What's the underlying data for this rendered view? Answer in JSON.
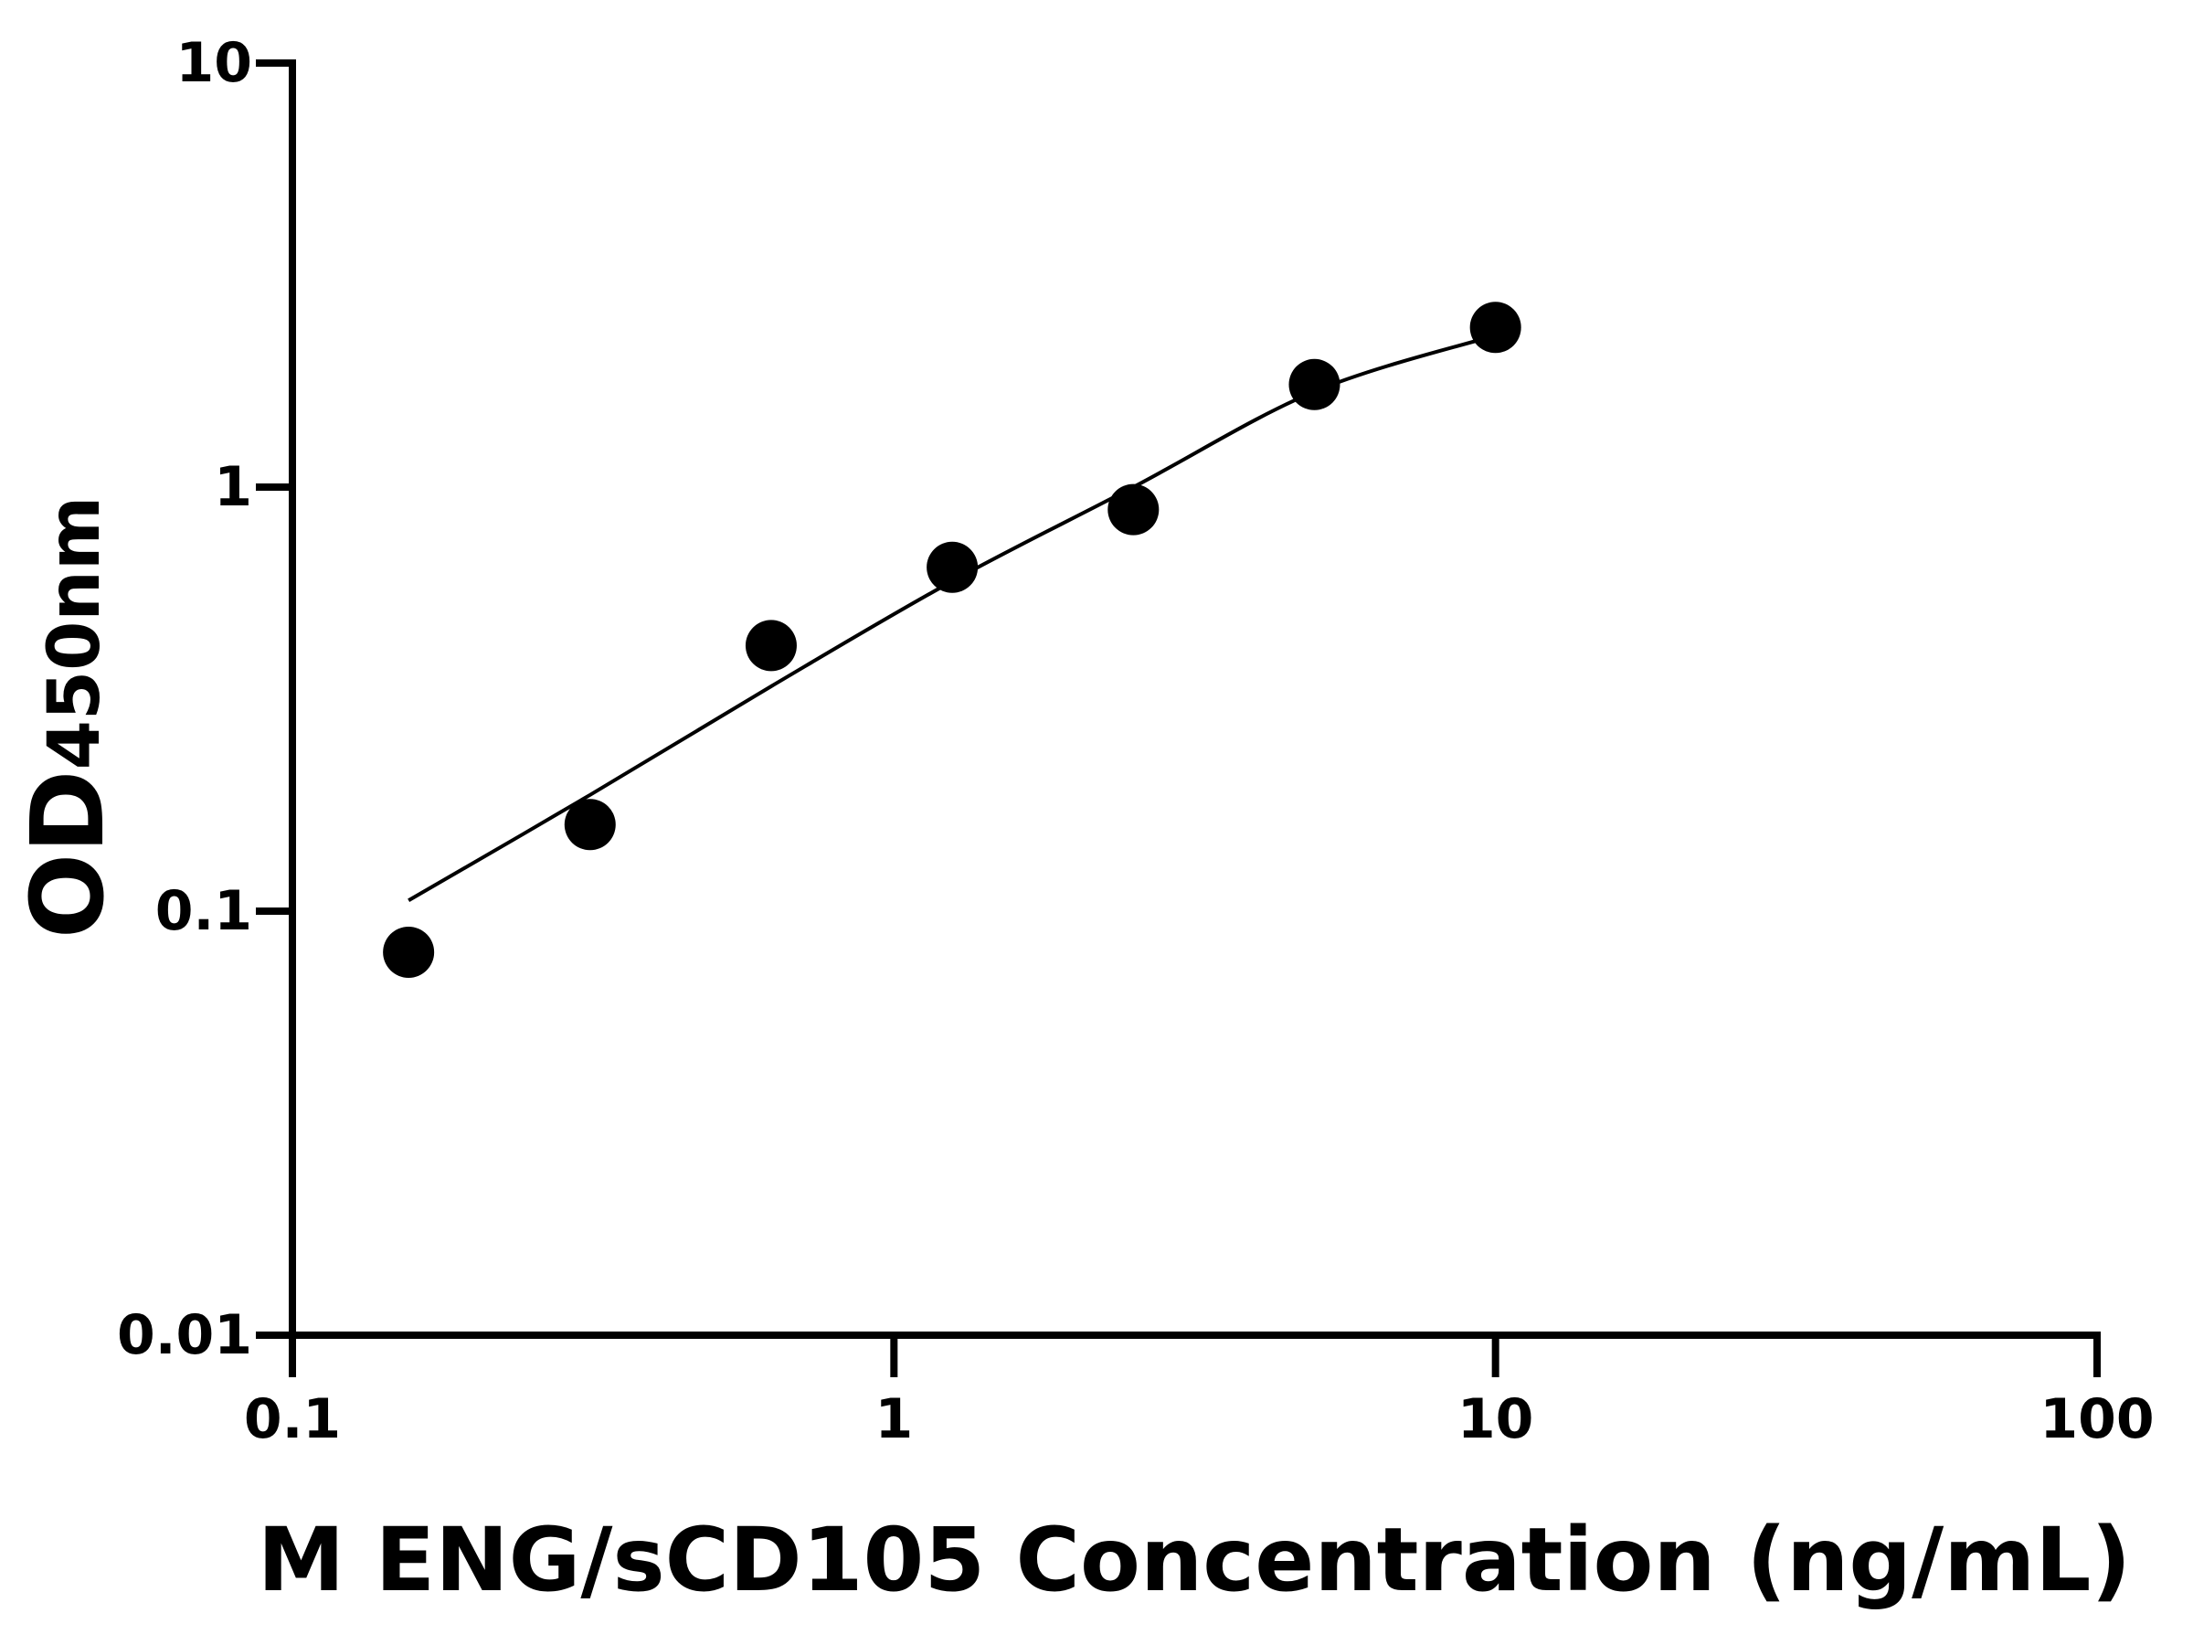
{
  "chart_data": {
    "type": "scatter",
    "xlabel": "M ENG/sCD105 Concentration (ng/mL)",
    "ylabel": "OD",
    "ylabel_sub": "450nm",
    "x": [
      0.156,
      0.3125,
      0.625,
      1.25,
      2.5,
      5,
      10
    ],
    "values": [
      0.08,
      0.16,
      0.423,
      0.647,
      0.885,
      1.745,
      2.38
    ],
    "color": "#000000",
    "fit": {
      "x": [
        0.156,
        0.3125,
        0.625,
        1.25,
        2.5,
        5,
        10
      ],
      "values": [
        0.106,
        0.188,
        0.339,
        0.6,
        1.0,
        1.68,
        2.28
      ],
      "color": "#000000"
    },
    "xlim": [
      0.1,
      100
    ],
    "xticks": [
      0.1,
      1,
      10,
      100
    ],
    "xscale": "log",
    "ylim": [
      0.01,
      10
    ],
    "yticks": [
      0.01,
      0.1,
      1,
      10
    ],
    "yscale": "log"
  }
}
